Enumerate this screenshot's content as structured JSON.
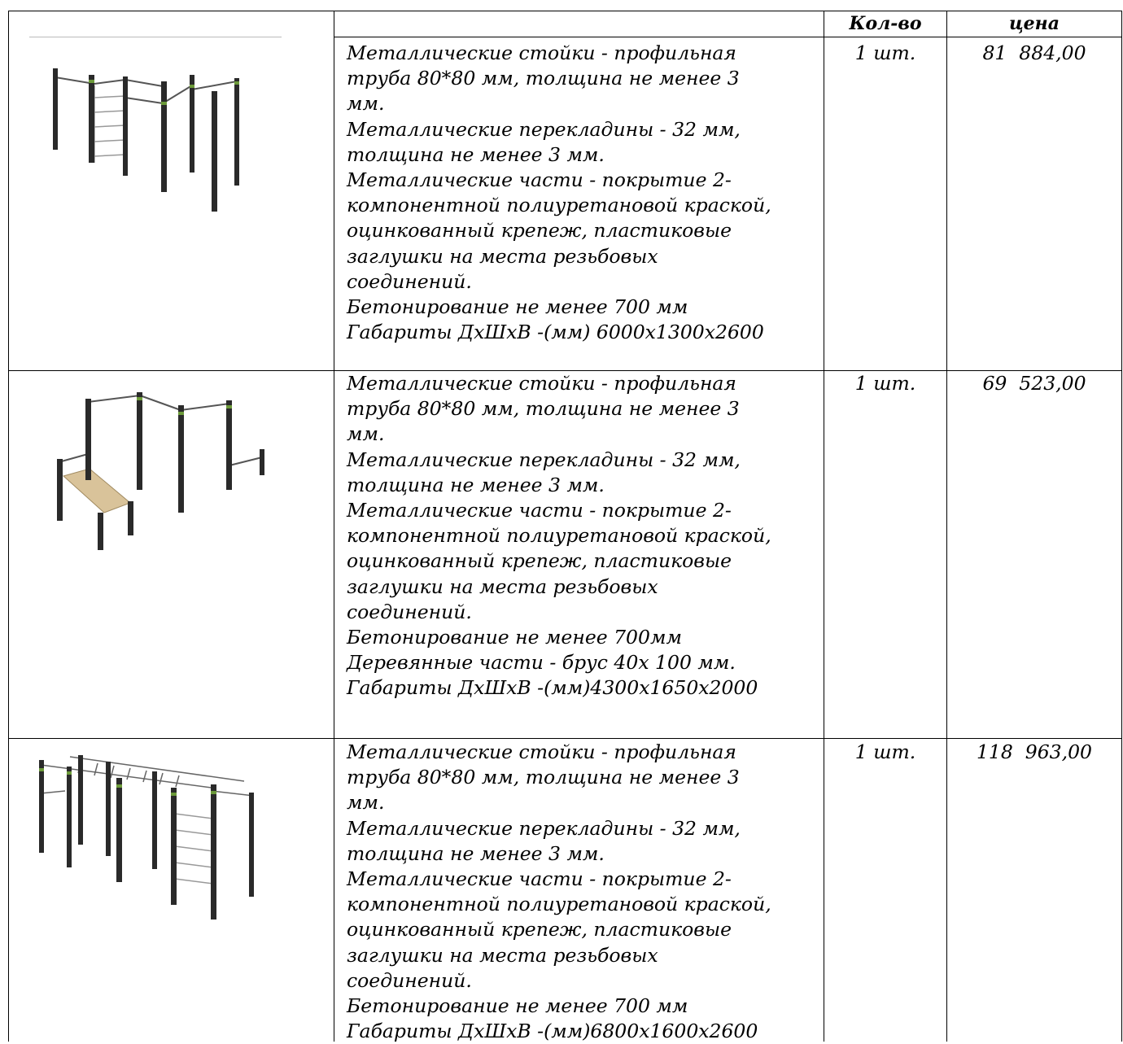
{
  "header": {
    "qty_label": "Кол-во",
    "price_label": "цена"
  },
  "rows": [
    {
      "image_icon": "street-workout-bars-image",
      "qty": "1 шт.",
      "price": "81  884,00",
      "lines": [
        "Металлические стойки - профильная",
        "труба 80*80 мм, толщина не менее 3",
        "мм.",
        "Металлические перекладины - 32 мм,",
        "толщина не менее 3 мм.",
        "Металлические части - покрытие 2-",
        "компонентной полиуретановой краской,",
        "оцинкованный крепеж, пластиковые",
        "заглушки на места резьбовых",
        "соединений.",
        "Бетонирование не менее 700 мм",
        "Габариты ДхШхВ -(мм) 6000х1300х2600"
      ]
    },
    {
      "image_icon": "street-workout-bench-image",
      "qty": "1 шт.",
      "price": "69  523,00",
      "lines": [
        "Металлические стойки - профильная",
        "труба 80*80 мм, толщина не менее 3",
        "мм.",
        "Металлические перекладины - 32 мм,",
        "толщина не менее 3 мм.",
        "Металлические части - покрытие 2-",
        "компонентной полиуретановой краской,",
        "оцинкованный крепеж, пластиковые",
        "заглушки на места резьбовых",
        "соединений.",
        "Бетонирование не менее 700мм",
        "Деревянные части - брус 40х 100 мм.",
        "Габариты ДхШхВ -(мм)4300х1650х2000"
      ]
    },
    {
      "image_icon": "street-workout-monkey-bars-image",
      "qty": "1 шт.",
      "price": "118  963,00",
      "lines": [
        "Металлические стойки - профильная",
        "труба 80*80 мм, толщина не менее 3",
        "мм.",
        "Металлические перекладины - 32 мм,",
        "толщина не менее 3 мм.",
        "Металлические части - покрытие 2-",
        "компонентной полиуретановой краской,",
        "оцинкованный крепеж, пластиковые",
        "заглушки на места резьбовых",
        "соединений.",
        "Бетонирование не менее 700 мм",
        "Габариты ДхШхВ -(мм)6800х1600х2600"
      ]
    }
  ]
}
